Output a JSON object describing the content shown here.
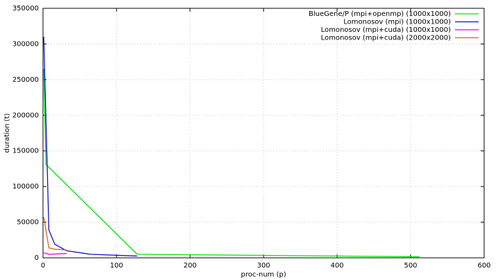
{
  "chart_data": {
    "type": "line",
    "x_label": "proc-num (p)",
    "y_label": "duration (t)",
    "xlim": [
      0,
      600
    ],
    "xticks": [
      0,
      100,
      200,
      300,
      400,
      500,
      600
    ],
    "ylim": [
      0,
      350000
    ],
    "yticks": [
      0,
      50000,
      100000,
      150000,
      200000,
      250000,
      300000,
      350000
    ],
    "grid": true,
    "legend": "top-right",
    "series": [
      {
        "name": "BlueGene/P (mpi+openmp) (1000x1000)",
        "color": "#00e000",
        "x": [
          1,
          4,
          128,
          512
        ],
        "values": [
          265000,
          131000,
          5000,
          1500
        ]
      },
      {
        "name": "Lomonosov (mpi) (1000x1000)",
        "color": "#1010c0",
        "x": [
          1,
          8,
          16,
          32,
          64,
          128
        ],
        "values": [
          310000,
          39000,
          19000,
          10000,
          5000,
          2500
        ]
      },
      {
        "name": "Lomonosov (mpi+cuda) (1000x1000)",
        "color": "#e000e0",
        "x": [
          1,
          8,
          32
        ],
        "values": [
          7000,
          5000,
          6000
        ]
      },
      {
        "name": "Lomonosov (mpi+cuda) (2000x2000)",
        "color": "#e06010",
        "x": [
          1,
          8,
          16,
          32
        ],
        "values": [
          57000,
          14000,
          12000,
          11000
        ]
      }
    ]
  }
}
